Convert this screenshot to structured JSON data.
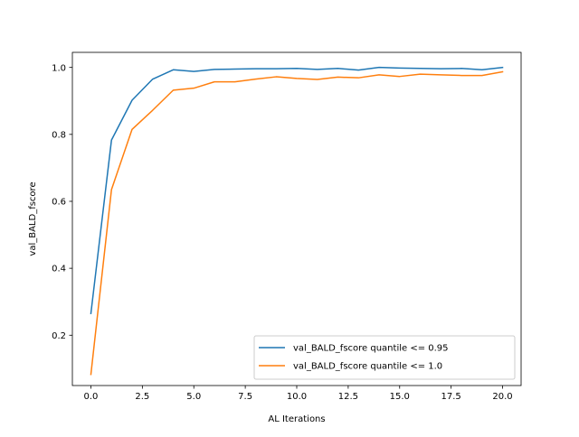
{
  "chart_data": {
    "type": "line",
    "title": "",
    "xlabel": "AL Iterations",
    "ylabel": "val_BALD_fscore",
    "xlim": [
      -0.9,
      20.9
    ],
    "ylim": [
      0.0497,
      1.045
    ],
    "xticks": [
      0.0,
      2.5,
      5.0,
      7.5,
      10.0,
      12.5,
      15.0,
      17.5,
      20.0
    ],
    "xtick_labels": [
      "0.0",
      "2.5",
      "5.0",
      "7.5",
      "10.0",
      "12.5",
      "15.0",
      "17.5",
      "20.0"
    ],
    "yticks": [
      0.2,
      0.4,
      0.6,
      0.8,
      1.0
    ],
    "ytick_labels": [
      "0.2",
      "0.4",
      "0.6",
      "0.8",
      "1.0"
    ],
    "grid": false,
    "legend_position": "lower-right",
    "x": [
      0,
      1,
      2,
      3,
      4,
      5,
      6,
      7,
      8,
      9,
      10,
      11,
      12,
      13,
      14,
      15,
      16,
      17,
      18,
      19,
      20
    ],
    "series": [
      {
        "name": "val_BALD_fscore quantile <= 0.95",
        "color": "#1f77b4",
        "values": [
          0.265,
          0.783,
          0.902,
          0.965,
          0.993,
          0.988,
          0.994,
          0.995,
          0.996,
          0.996,
          0.997,
          0.994,
          0.997,
          0.992,
          1.0,
          0.998,
          0.997,
          0.996,
          0.997,
          0.993,
          1.0
        ]
      },
      {
        "name": "val_BALD_fscore quantile <= 1.0",
        "color": "#ff7f0e",
        "values": [
          0.083,
          0.635,
          0.815,
          0.872,
          0.932,
          0.938,
          0.957,
          0.957,
          0.965,
          0.972,
          0.967,
          0.964,
          0.971,
          0.969,
          0.978,
          0.973,
          0.98,
          0.978,
          0.976,
          0.976,
          0.987
        ]
      }
    ]
  }
}
